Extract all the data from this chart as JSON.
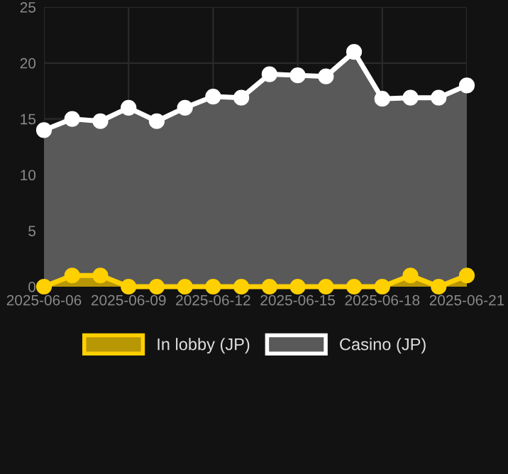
{
  "chart_data": {
    "type": "area",
    "x": [
      "2025-06-06",
      "2025-06-07",
      "2025-06-08",
      "2025-06-09",
      "2025-06-10",
      "2025-06-11",
      "2025-06-12",
      "2025-06-13",
      "2025-06-14",
      "2025-06-15",
      "2025-06-16",
      "2025-06-17",
      "2025-06-18",
      "2025-06-19",
      "2025-06-20",
      "2025-06-21"
    ],
    "series": [
      {
        "name": "In lobby (JP)",
        "color": "#ffd000",
        "values": [
          0,
          1,
          1,
          0,
          0,
          0,
          0,
          0,
          0,
          0,
          0,
          0,
          0,
          1,
          0,
          1
        ]
      },
      {
        "name": "Casino (JP)",
        "color": "#ffffff",
        "values": [
          14,
          15,
          14.8,
          16,
          14.8,
          16,
          17,
          16.9,
          19,
          18.9,
          18.8,
          21,
          16.8,
          16.9,
          16.9,
          18
        ]
      }
    ],
    "xlim": [
      "2025-06-06",
      "2025-06-21"
    ],
    "xticks": [
      {
        "value": "2025-06-06",
        "label": "2025-06-06"
      },
      {
        "value": "2025-06-09",
        "label": "2025-06-09"
      },
      {
        "value": "2025-06-12",
        "label": "2025-06-12"
      },
      {
        "value": "2025-06-15",
        "label": "2025-06-15"
      },
      {
        "value": "2025-06-18",
        "label": "2025-06-18"
      },
      {
        "value": "2025-06-21",
        "label": "2025-06-21"
      }
    ],
    "ylim": [
      0,
      25
    ],
    "yticks": [
      0,
      5,
      10,
      15,
      20,
      25
    ],
    "grid": true,
    "legend": "bottom",
    "marker": "circle",
    "line_style": "solid"
  }
}
